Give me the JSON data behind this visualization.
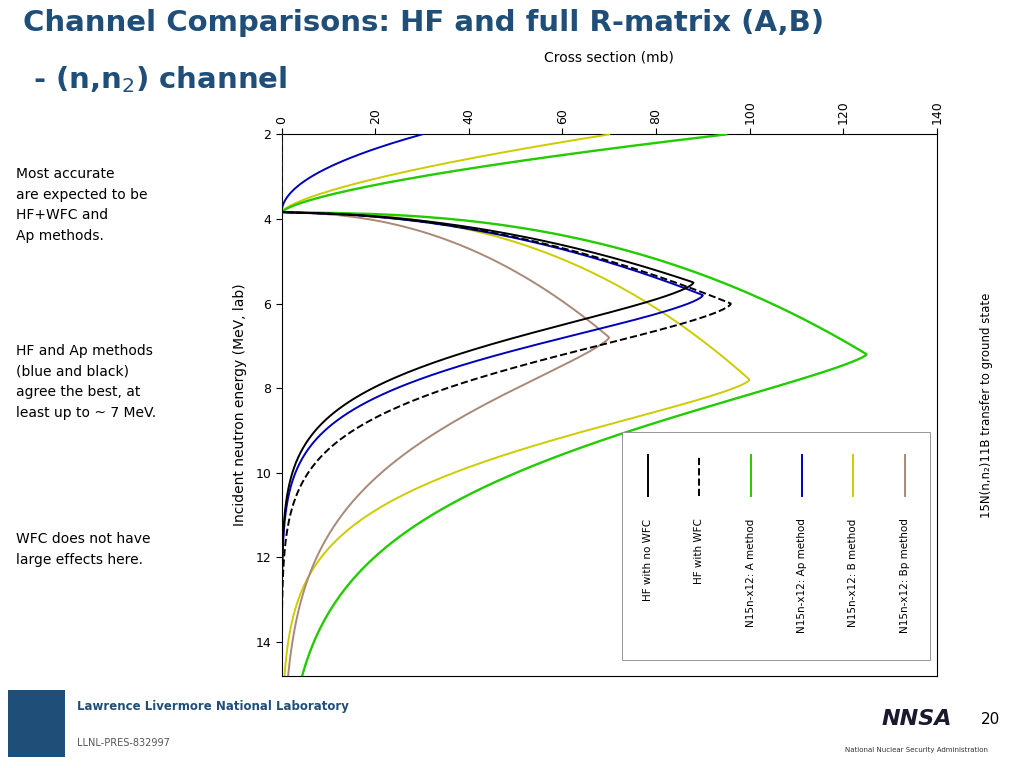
{
  "title_line1": "Channel Comparisons: HF and full R-matrix (A,B)",
  "title_line2": " - (n,n₂) channel",
  "title_color": "#1F4E79",
  "header_bar_color": "#2E75B6",
  "xlabel": "Cross section (mb)",
  "ylabel": "Incident neutron energy (MeV, lab)",
  "right_label": "15N(n,n₂)11B transfer to ground state",
  "xlim": [
    0,
    140
  ],
  "ylim": [
    2,
    14.8
  ],
  "xticks": [
    0,
    20,
    40,
    60,
    80,
    100,
    120,
    140
  ],
  "yticks": [
    2,
    4,
    6,
    8,
    10,
    12,
    14
  ],
  "text_blocks": [
    "Most accurate\nare expected to be\nHF+WFC and\nAp methods.",
    "HF and Ap methods\n(blue and black)\nagree the best, at\nleast up to ~ 7 MeV.",
    "WFC does not have\nlarge effects here."
  ],
  "legend_labels": [
    "HF with no WFC",
    "HF with WFC",
    "N15n-x12: A method",
    "N15n-x12: Ap method",
    "N15n-x12: B method",
    "N15n-x12: Bp method"
  ],
  "legend_colors": [
    "#000000",
    "#000000",
    "#22CC00",
    "#0000BB",
    "#CCCC00",
    "#AA8877"
  ],
  "legend_linestyles": [
    "solid",
    "dashed",
    "solid",
    "solid",
    "solid",
    "solid"
  ],
  "background_color": "#FFFFFF",
  "footer_bg_color": "#DEDEDE",
  "footer_color": "#1F4E79",
  "footer_text": "Lawrence Livermore National Laboratory",
  "footer_subtext": "LLNL-PRES-832997",
  "page_number": "20"
}
